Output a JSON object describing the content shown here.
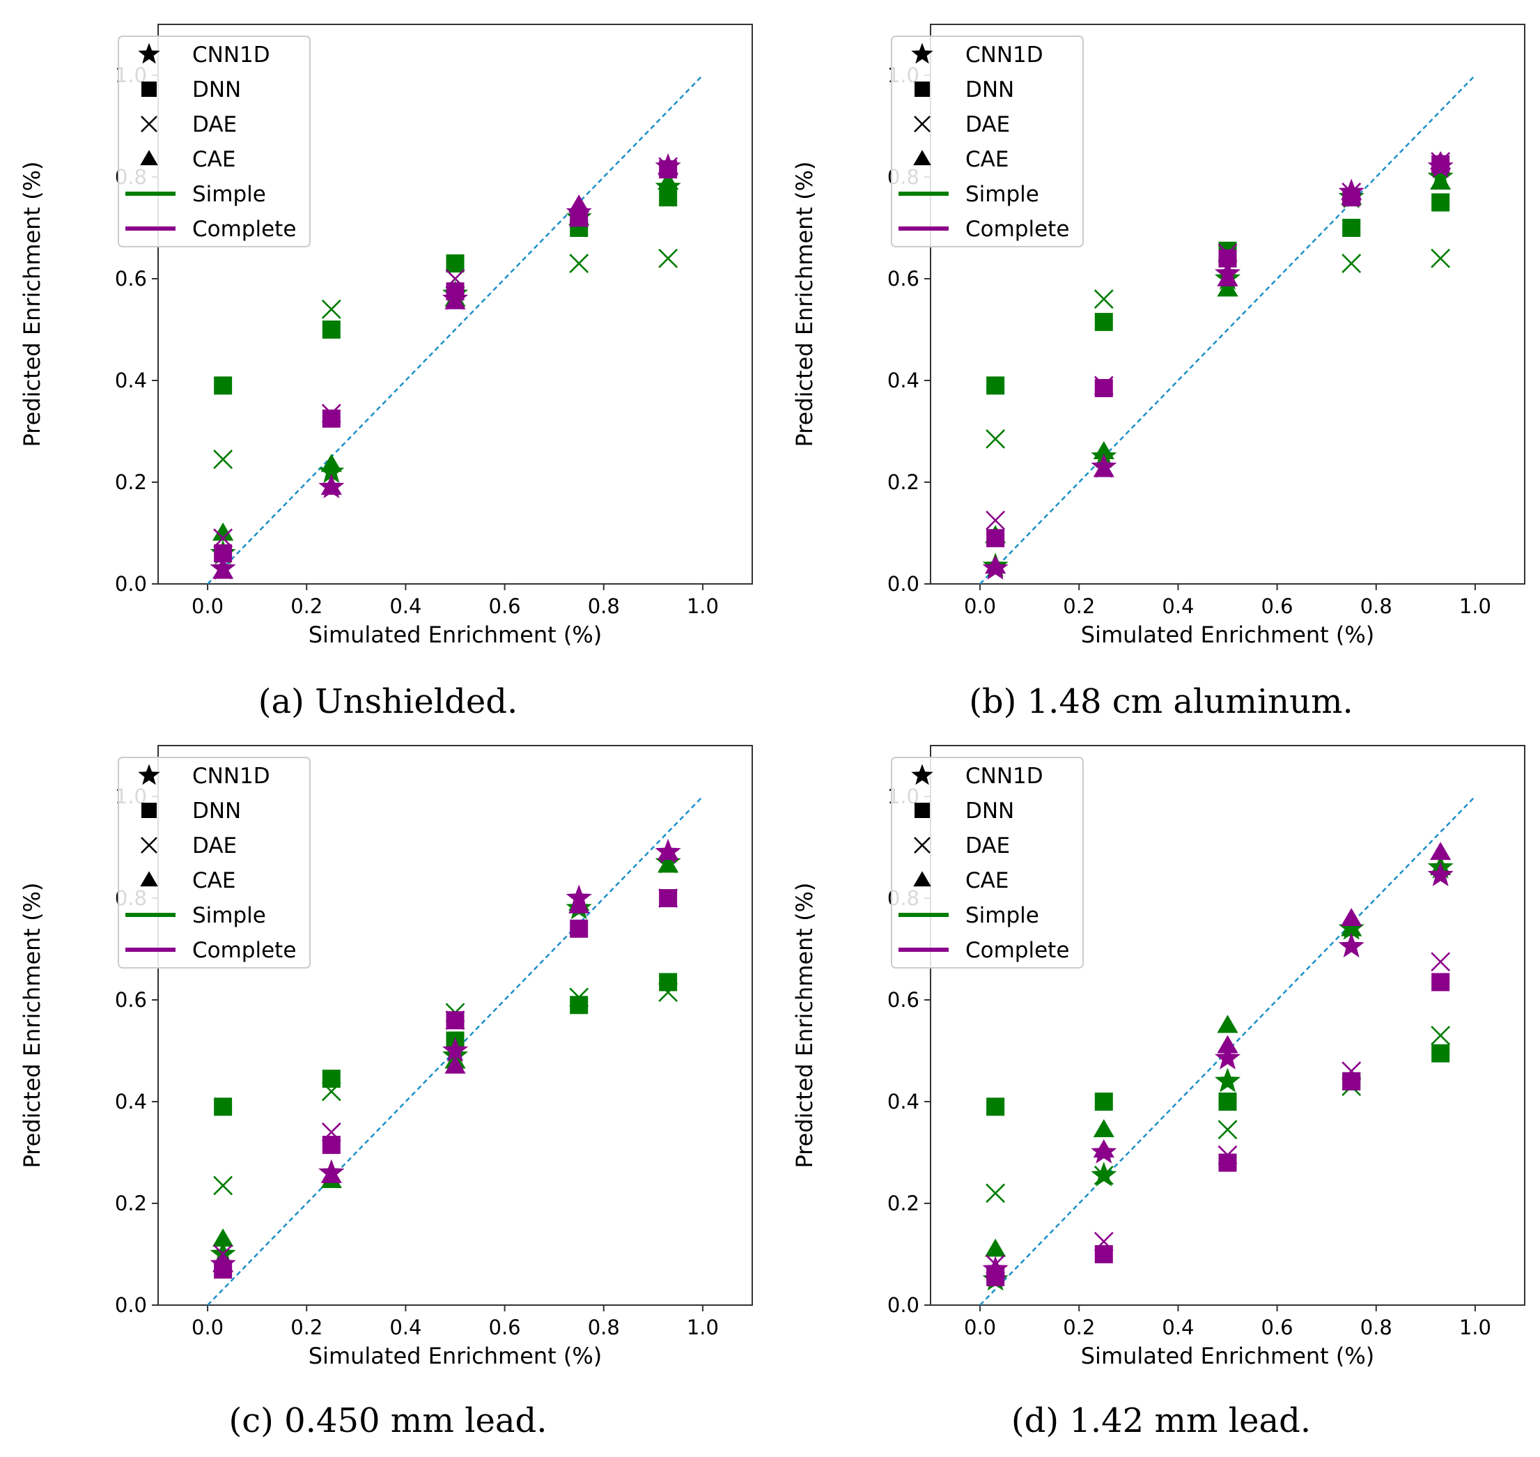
{
  "colors": {
    "simple": "#007d00",
    "complete": "#8b008b",
    "diagonal": "#1a8fc9",
    "axes": "#333333"
  },
  "legend": {
    "markers": [
      {
        "label": "CNN1D",
        "model": "CNN1D"
      },
      {
        "label": "DNN",
        "model": "DNN"
      },
      {
        "label": "DAE",
        "model": "DAE"
      },
      {
        "label": "CAE",
        "model": "CAE"
      }
    ],
    "lines": [
      {
        "label": "Simple",
        "set": "simple"
      },
      {
        "label": "Complete",
        "set": "complete"
      }
    ]
  },
  "chart_data": [
    {
      "type": "scatter",
      "caption": "(a) Unshielded.",
      "xlabel": "Simulated Enrichment (%)",
      "ylabel": "Predicted Enrichment (%)",
      "xlim": [
        -0.1,
        1.1
      ],
      "ylim": [
        0.0,
        1.1
      ],
      "xticks": [
        "0.0",
        "0.2",
        "0.4",
        "0.6",
        "0.8",
        "1.0"
      ],
      "yticks": [
        "0.0",
        "0.2",
        "0.4",
        "0.6",
        "0.8",
        "1.0"
      ],
      "x": [
        0.031,
        0.25,
        0.5,
        0.75,
        0.93
      ],
      "series": [
        {
          "model": "CNN1D",
          "set": "simple",
          "values": [
            0.06,
            0.22,
            0.57,
            0.72,
            0.78
          ]
        },
        {
          "model": "DNN",
          "set": "simple",
          "values": [
            0.39,
            0.5,
            0.63,
            0.7,
            0.76
          ]
        },
        {
          "model": "DAE",
          "set": "simple",
          "values": [
            0.245,
            0.54,
            0.6,
            0.63,
            0.64
          ]
        },
        {
          "model": "CAE",
          "set": "simple",
          "values": [
            0.1,
            0.235,
            0.56,
            0.72,
            0.79
          ]
        },
        {
          "model": "CNN1D",
          "set": "complete",
          "values": [
            0.03,
            0.19,
            0.56,
            0.73,
            0.82
          ]
        },
        {
          "model": "DNN",
          "set": "complete",
          "values": [
            0.06,
            0.325,
            0.575,
            0.72,
            0.815
          ]
        },
        {
          "model": "DAE",
          "set": "complete",
          "values": [
            0.09,
            0.335,
            0.6,
            0.72,
            0.82
          ]
        },
        {
          "model": "CAE",
          "set": "complete",
          "values": [
            0.025,
            0.19,
            0.555,
            0.745,
            0.82
          ]
        }
      ]
    },
    {
      "type": "scatter",
      "caption": "(b) 1.48 cm aluminum.",
      "xlabel": "Simulated Enrichment (%)",
      "ylabel": "Predicted Enrichment (%)",
      "xlim": [
        -0.1,
        1.1
      ],
      "ylim": [
        0.0,
        1.1
      ],
      "xticks": [
        "0.0",
        "0.2",
        "0.4",
        "0.6",
        "0.8",
        "1.0"
      ],
      "yticks": [
        "0.0",
        "0.2",
        "0.4",
        "0.6",
        "0.8",
        "1.0"
      ],
      "x": [
        0.031,
        0.25,
        0.5,
        0.75,
        0.93
      ],
      "series": [
        {
          "model": "CNN1D",
          "set": "simple",
          "values": [
            0.035,
            0.25,
            0.6,
            0.76,
            0.8
          ]
        },
        {
          "model": "DNN",
          "set": "simple",
          "values": [
            0.39,
            0.515,
            0.655,
            0.7,
            0.75
          ]
        },
        {
          "model": "DAE",
          "set": "simple",
          "values": [
            0.285,
            0.56,
            0.62,
            0.63,
            0.64
          ]
        },
        {
          "model": "CAE",
          "set": "simple",
          "values": [
            0.095,
            0.26,
            0.58,
            0.76,
            0.79
          ]
        },
        {
          "model": "CNN1D",
          "set": "complete",
          "values": [
            0.03,
            0.23,
            0.61,
            0.77,
            0.82
          ]
        },
        {
          "model": "DNN",
          "set": "complete",
          "values": [
            0.09,
            0.385,
            0.64,
            0.76,
            0.825
          ]
        },
        {
          "model": "DAE",
          "set": "complete",
          "values": [
            0.125,
            0.39,
            0.65,
            0.77,
            0.83
          ]
        },
        {
          "model": "CAE",
          "set": "complete",
          "values": [
            0.035,
            0.225,
            0.6,
            0.77,
            0.83
          ]
        }
      ]
    },
    {
      "type": "scatter",
      "caption": "(c) 0.450 mm lead.",
      "xlabel": "Simulated Enrichment (%)",
      "ylabel": "Predicted Enrichment (%)",
      "xlim": [
        -0.1,
        1.1
      ],
      "ylim": [
        0.0,
        1.1
      ],
      "xticks": [
        "0.0",
        "0.2",
        "0.4",
        "0.6",
        "0.8",
        "1.0"
      ],
      "yticks": [
        "0.0",
        "0.2",
        "0.4",
        "0.6",
        "0.8",
        "1.0"
      ],
      "x": [
        0.031,
        0.25,
        0.5,
        0.75,
        0.93
      ],
      "series": [
        {
          "model": "CNN1D",
          "set": "simple",
          "values": [
            0.1,
            0.26,
            0.49,
            0.78,
            0.87
          ]
        },
        {
          "model": "DNN",
          "set": "simple",
          "values": [
            0.39,
            0.445,
            0.52,
            0.59,
            0.635
          ]
        },
        {
          "model": "DAE",
          "set": "simple",
          "values": [
            0.235,
            0.42,
            0.575,
            0.605,
            0.615
          ]
        },
        {
          "model": "CAE",
          "set": "simple",
          "values": [
            0.13,
            0.245,
            0.48,
            0.79,
            0.865
          ]
        },
        {
          "model": "CNN1D",
          "set": "complete",
          "values": [
            0.08,
            0.26,
            0.5,
            0.8,
            0.89
          ]
        },
        {
          "model": "DNN",
          "set": "complete",
          "values": [
            0.07,
            0.315,
            0.56,
            0.74,
            0.8
          ]
        },
        {
          "model": "DAE",
          "set": "complete",
          "values": [
            0.1,
            0.34,
            0.56,
            0.79,
            0.8
          ]
        },
        {
          "model": "CAE",
          "set": "complete",
          "values": [
            0.08,
            0.255,
            0.47,
            0.785,
            0.89
          ]
        }
      ]
    },
    {
      "type": "scatter",
      "caption": "(d) 1.42 mm lead.",
      "xlabel": "Simulated Enrichment (%)",
      "ylabel": "Predicted Enrichment (%)",
      "xlim": [
        -0.1,
        1.1
      ],
      "ylim": [
        0.0,
        1.1
      ],
      "xticks": [
        "0.0",
        "0.2",
        "0.4",
        "0.6",
        "0.8",
        "1.0"
      ],
      "yticks": [
        "0.0",
        "0.2",
        "0.4",
        "0.6",
        "0.8",
        "1.0"
      ],
      "x": [
        0.031,
        0.25,
        0.5,
        0.75,
        0.93
      ],
      "series": [
        {
          "model": "CNN1D",
          "set": "simple",
          "values": [
            0.05,
            0.255,
            0.44,
            0.74,
            0.86
          ]
        },
        {
          "model": "DNN",
          "set": "simple",
          "values": [
            0.39,
            0.4,
            0.4,
            0.44,
            0.495
          ]
        },
        {
          "model": "DAE",
          "set": "simple",
          "values": [
            0.22,
            0.255,
            0.345,
            0.43,
            0.53
          ]
        },
        {
          "model": "CAE",
          "set": "simple",
          "values": [
            0.11,
            0.345,
            0.55,
            0.74,
            0.86
          ]
        },
        {
          "model": "CNN1D",
          "set": "complete",
          "values": [
            0.07,
            0.3,
            0.485,
            0.705,
            0.845
          ]
        },
        {
          "model": "DNN",
          "set": "complete",
          "values": [
            0.055,
            0.1,
            0.28,
            0.44,
            0.635
          ]
        },
        {
          "model": "DAE",
          "set": "complete",
          "values": [
            0.08,
            0.125,
            0.295,
            0.46,
            0.675
          ]
        },
        {
          "model": "CAE",
          "set": "complete",
          "values": [
            0.07,
            0.305,
            0.51,
            0.76,
            0.89
          ]
        }
      ]
    }
  ]
}
